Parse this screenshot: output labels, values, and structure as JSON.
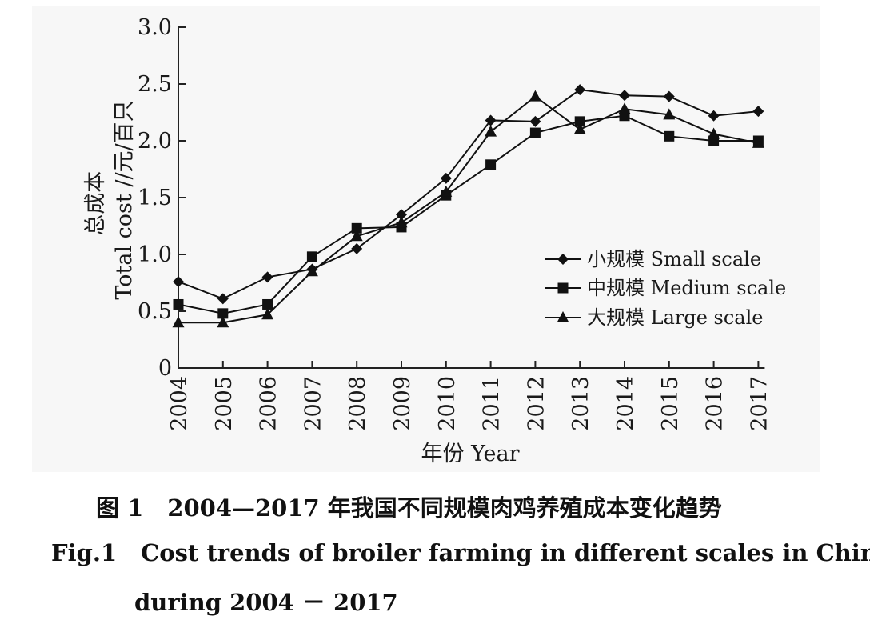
{
  "chart_data": {
    "type": "line",
    "ylabel_cn": "总成本",
    "ylabel_en": "Total cost",
    "ylabel_unit": "//元/百只",
    "xlabel_cn": "年份",
    "xlabel_en": "Year",
    "x": [
      "2004",
      "2005",
      "2006",
      "2007",
      "2008",
      "2009",
      "2010",
      "2011",
      "2012",
      "2013",
      "2014",
      "2015",
      "2016",
      "2017"
    ],
    "ylim": [
      0,
      3.0
    ],
    "yticks": [
      "0",
      "0.5",
      "1.0",
      "1.5",
      "2.0",
      "2.5",
      "3.0"
    ],
    "yticks_values": [
      0,
      0.5,
      1.0,
      1.5,
      2.0,
      2.5,
      3.0
    ],
    "grid": false,
    "legend_position": "right",
    "series": [
      {
        "name": "小规模 Small scale",
        "marker": "diamond",
        "values": [
          0.76,
          0.61,
          0.8,
          0.87,
          1.05,
          1.35,
          1.67,
          2.18,
          2.17,
          2.45,
          2.4,
          2.39,
          2.22,
          2.26
        ]
      },
      {
        "name": "中规模 Medium scale",
        "marker": "square",
        "values": [
          0.56,
          0.48,
          0.56,
          0.98,
          1.23,
          1.24,
          1.52,
          1.79,
          2.07,
          2.17,
          2.22,
          2.04,
          2.0,
          2.0
        ]
      },
      {
        "name": "大规模 Large scale",
        "marker": "triangle",
        "values": [
          0.4,
          0.4,
          0.47,
          0.85,
          1.16,
          1.28,
          1.55,
          2.08,
          2.39,
          2.1,
          2.28,
          2.23,
          2.06,
          1.98
        ]
      }
    ]
  },
  "caption": {
    "cn_label": "图 1",
    "cn_text": "2004—2017 年我国不同规模肉鸡养殖成本变化趋势",
    "en_label": "Fig.1",
    "en_text": "Cost trends of broiler farming in different scales in China",
    "en_text_2": "during 2004 － 2017"
  }
}
